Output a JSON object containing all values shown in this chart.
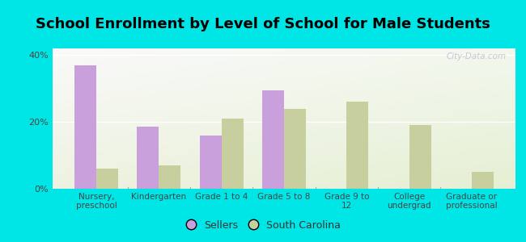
{
  "title": "School Enrollment by Level of School for Male Students",
  "categories": [
    "Nursery,\npreschool",
    "Kindergarten",
    "Grade 1 to 4",
    "Grade 5 to 8",
    "Grade 9 to\n12",
    "College\nundergrad",
    "Graduate or\nprofessional"
  ],
  "sellers": [
    37.0,
    18.5,
    16.0,
    29.5,
    0.0,
    0.0,
    0.0
  ],
  "south_carolina": [
    6.0,
    7.0,
    21.0,
    24.0,
    26.0,
    19.0,
    5.0
  ],
  "sellers_color": "#c9a0dc",
  "sc_color": "#c8cf9e",
  "background_outer": "#00e5e5",
  "ylim": [
    0,
    42
  ],
  "yticks": [
    0,
    20,
    40
  ],
  "ytick_labels": [
    "0%",
    "20%",
    "40%"
  ],
  "bar_width": 0.35,
  "title_fontsize": 13,
  "legend_labels": [
    "Sellers",
    "South Carolina"
  ],
  "watermark": "City-Data.com"
}
